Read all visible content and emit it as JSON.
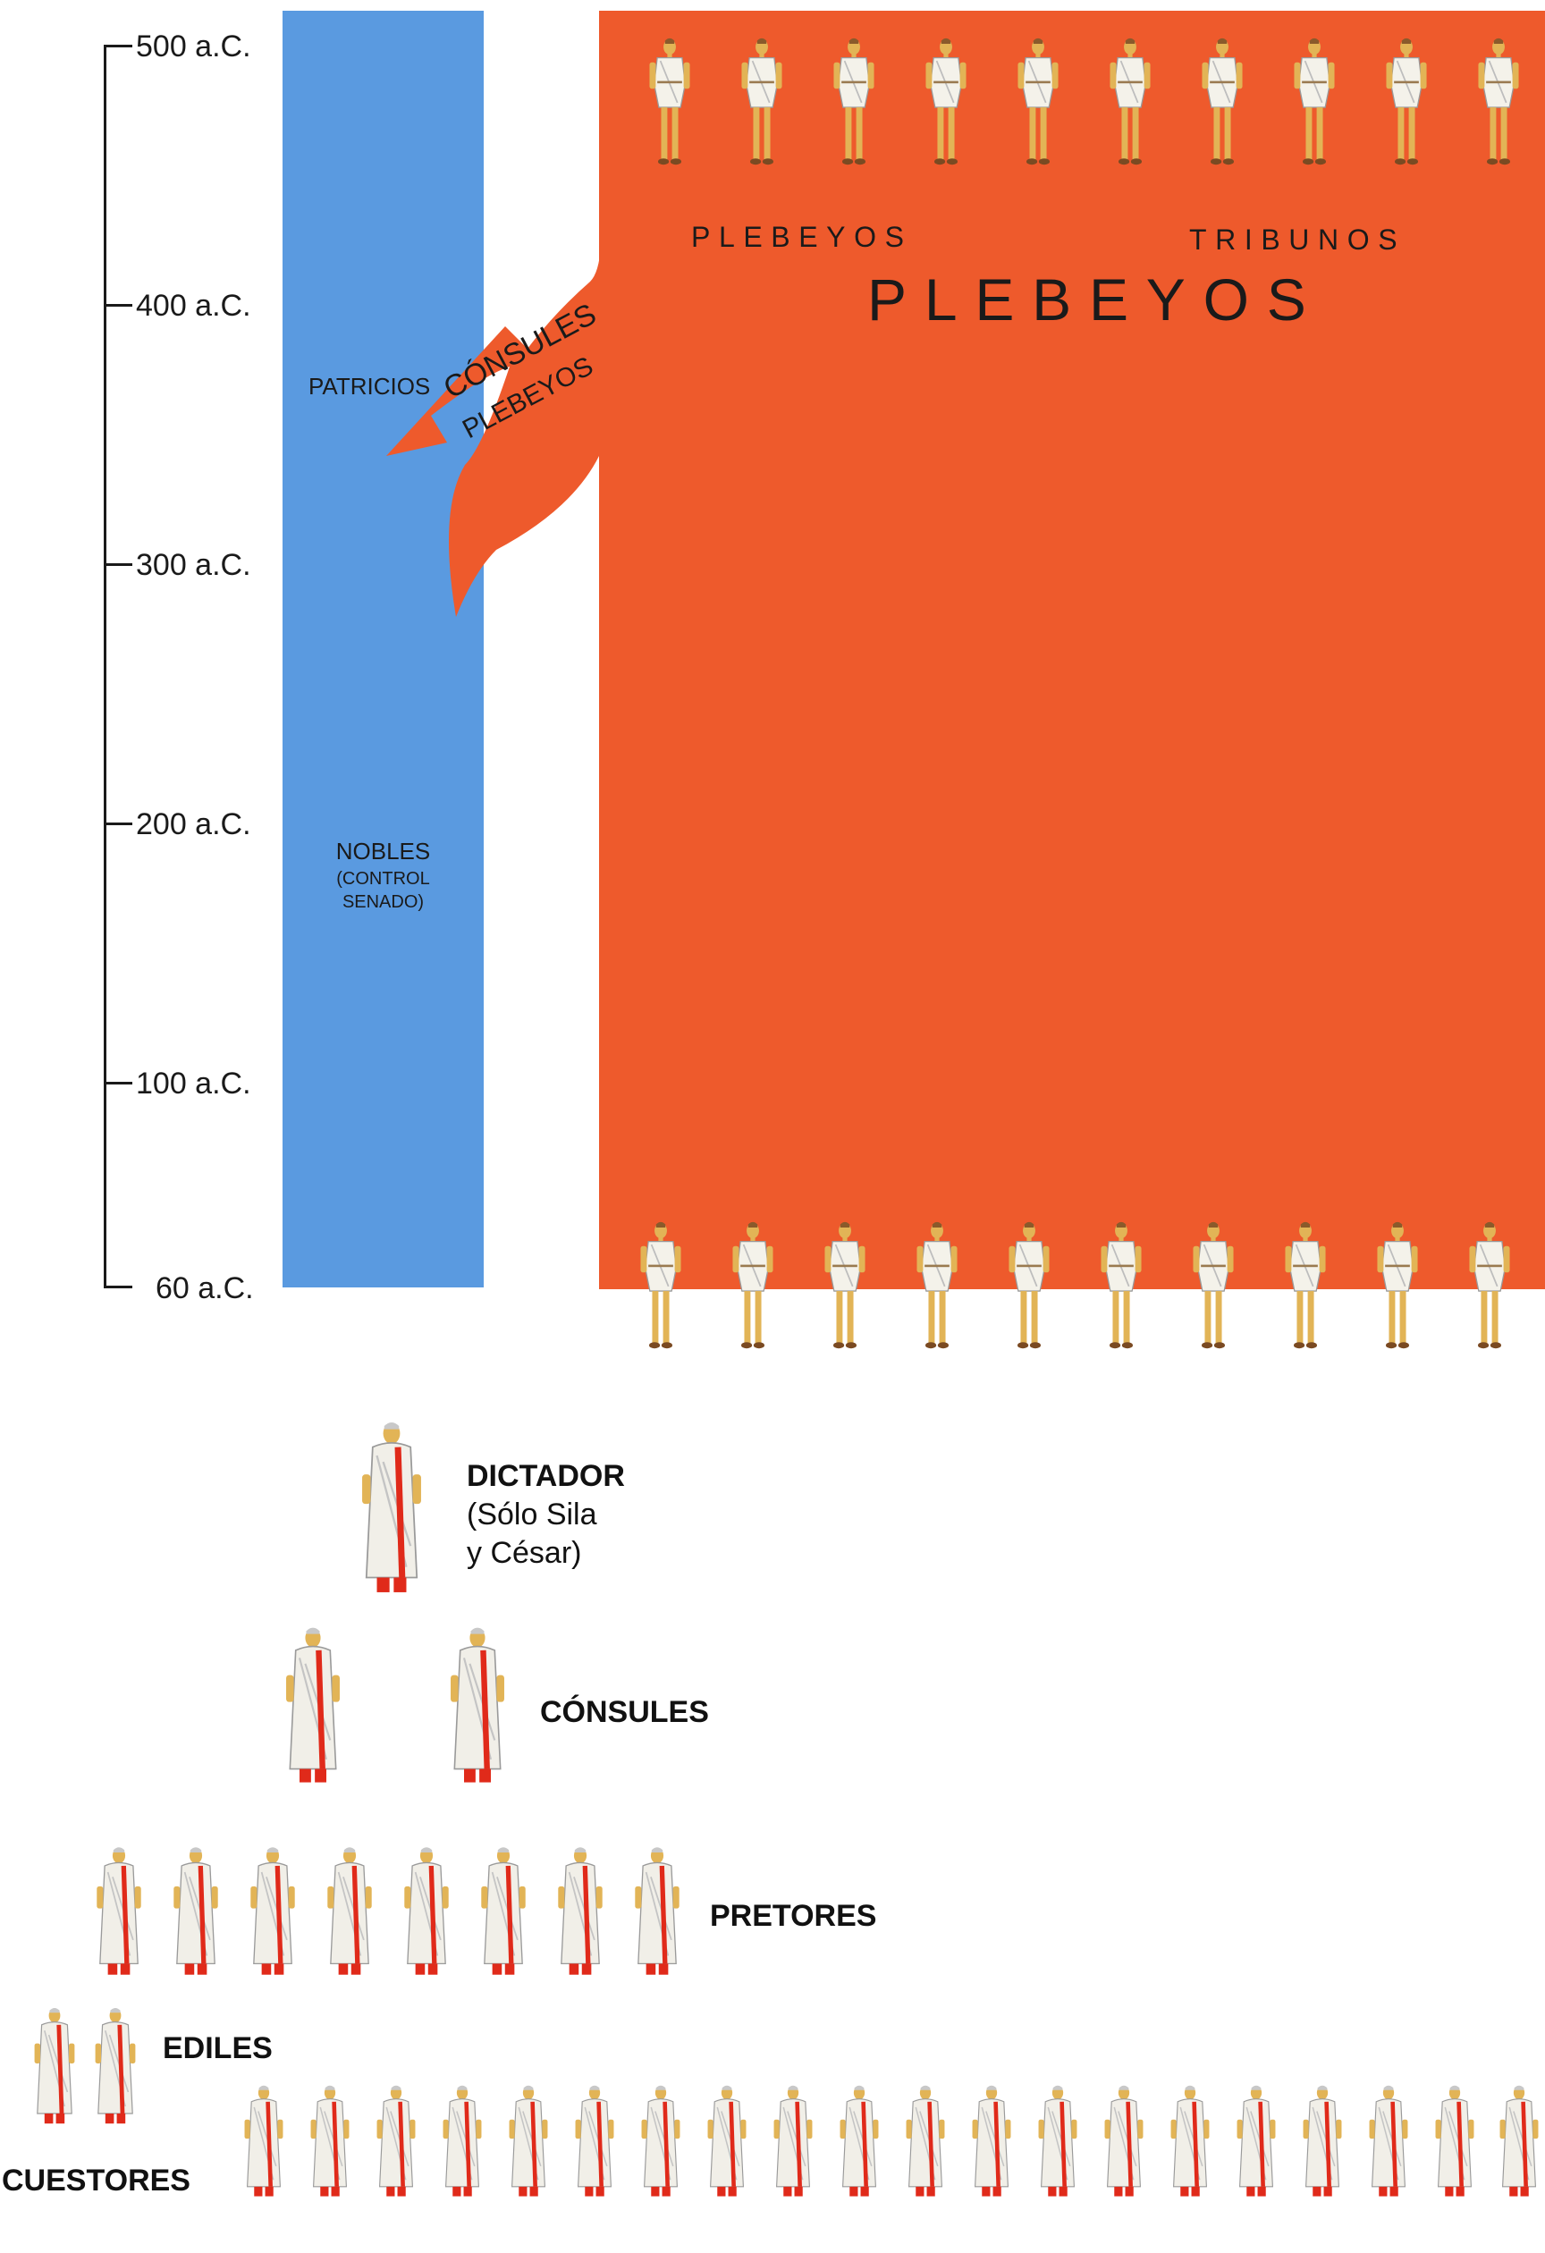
{
  "timeline": {
    "ticks": [
      "500 a.C.",
      "400 a.C.",
      "300 a.C.",
      "200 a.C.",
      "100 a.C.",
      "60 a.C."
    ]
  },
  "bands": {
    "patricios": "PATRICIOS",
    "nobles": "NOBLES",
    "control_senado_1": "(CONTROL",
    "control_senado_2": "SENADO)",
    "plebeyos_top": "PLEBEYOS",
    "tribunos": "TRIBUNOS",
    "plebeyos_big": "PLEBEYOS"
  },
  "arrow": {
    "line1": "CÓNSULES",
    "line2": "PLEBEYOS",
    "color": "#ee5a2c"
  },
  "magistracies": {
    "dictador": "DICTADOR",
    "dictador_note_1": "(Sólo Sila",
    "dictador_note_2": "y César)",
    "consules": "CÓNSULES",
    "pretores": "PRETORES",
    "ediles": "EDILES",
    "cuestores": "CUESTORES"
  },
  "colors": {
    "patrician_band": "#5a9ae0",
    "plebeian_band": "#ee5a2c",
    "toga_stripe": "#e02a1a"
  },
  "icons": {
    "plebeian_figure": "plebeian-tunic-figure-icon",
    "magistrate_figure": "toga-magistrate-figure-icon"
  }
}
